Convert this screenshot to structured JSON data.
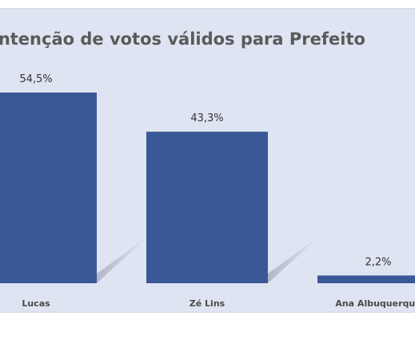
{
  "chart_data": {
    "type": "bar",
    "title": "Intenção de votos válidos para Prefeito",
    "categories": [
      "Lucas",
      "Zé Lins",
      "Ana Albuquerque"
    ],
    "values": [
      54.5,
      43.3,
      2.2
    ],
    "value_labels": [
      "54,5%",
      "43,3%",
      "2,2%"
    ],
    "xlabel": "",
    "ylabel": "",
    "ylim": [
      0,
      60
    ],
    "grid": false,
    "legend": "none",
    "bar_color": "#3a5897"
  }
}
